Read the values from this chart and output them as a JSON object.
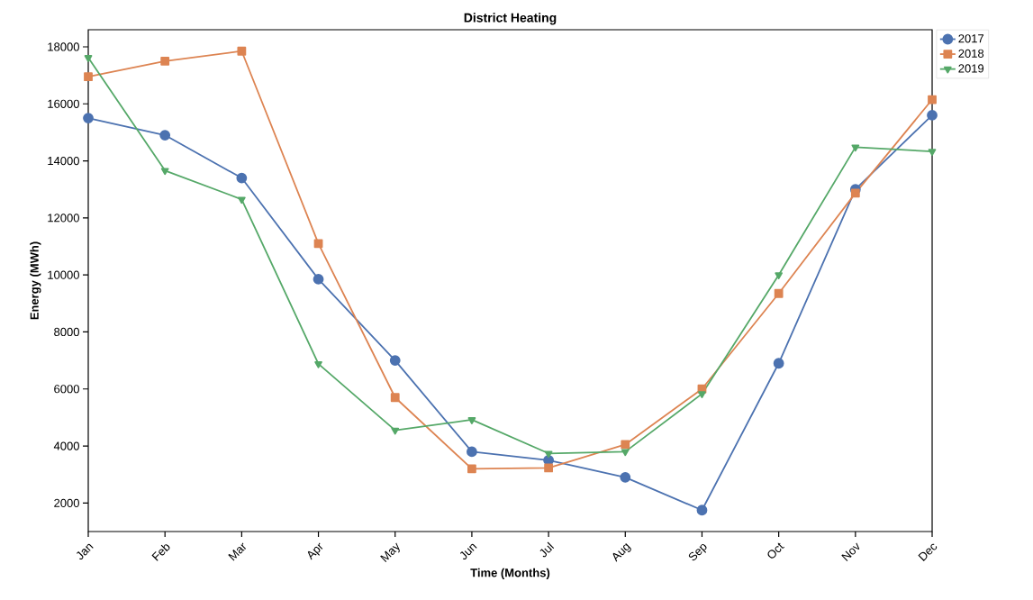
{
  "chart_data": {
    "type": "line",
    "title": "District Heating",
    "xlabel": "Time (Months)",
    "ylabel": "Energy (MWh)",
    "categories": [
      "Jan",
      "Feb",
      "Mar",
      "Apr",
      "May",
      "Jun",
      "Jul",
      "Aug",
      "Sep",
      "Oct",
      "Nov",
      "Dec"
    ],
    "series": [
      {
        "name": "2017",
        "color": "#4c72b0",
        "marker": "circle",
        "values": [
          15500,
          14900,
          13400,
          9850,
          7000,
          3800,
          3500,
          2900,
          1750,
          6900,
          13000,
          15600
        ]
      },
      {
        "name": "2018",
        "color": "#dd8452",
        "marker": "square",
        "values": [
          16950,
          17500,
          17850,
          11100,
          5700,
          3200,
          3230,
          4050,
          6000,
          9350,
          12870,
          16150
        ]
      },
      {
        "name": "2019",
        "color": "#55a868",
        "marker": "triangle",
        "values": [
          17620,
          13660,
          12650,
          6880,
          4550,
          4920,
          3740,
          3800,
          5830,
          10000,
          14480,
          14330
        ]
      }
    ],
    "ylim": [
      1000,
      18600
    ],
    "yticks": [
      2000,
      4000,
      6000,
      8000,
      10000,
      12000,
      14000,
      16000,
      18000
    ],
    "grid": false,
    "legend": "top right",
    "line_style": "solid"
  }
}
